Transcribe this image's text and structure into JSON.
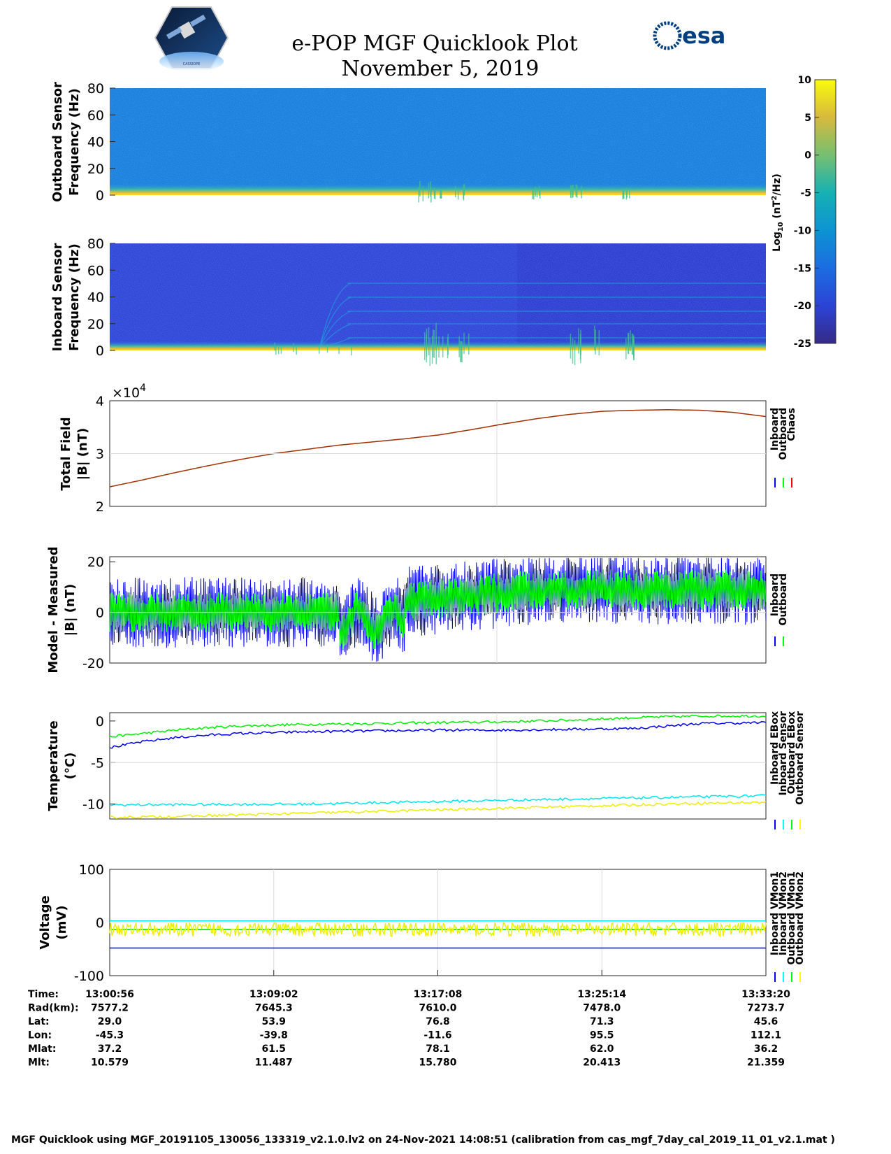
{
  "header": {
    "title": "e-POP MGF Quicklook Plot",
    "subtitle": "November 5, 2019",
    "esa_logo_text": "esa",
    "cassiope_logo_text": "CASSIOPE"
  },
  "colorbar": {
    "ticks": [
      "10",
      "5",
      "0",
      "-5",
      "-10",
      "-15",
      "-20",
      "-25"
    ],
    "label": "Log10 (nT²/Hz)",
    "range": [
      -25,
      10
    ]
  },
  "chart_data": [
    {
      "type": "heatmap",
      "name": "outboard-spectrogram",
      "ylabel": [
        "Outboard Sensor",
        "Frequency (Hz)"
      ],
      "yticks": [
        "80",
        "60",
        "40",
        "20",
        "0"
      ],
      "ylim": [
        0,
        80
      ],
      "background_level": -12,
      "low_freq_level": 5
    },
    {
      "type": "heatmap",
      "name": "inboard-spectrogram",
      "ylabel": [
        "Inboard Sensor",
        "Frequency (Hz)"
      ],
      "yticks": [
        "80",
        "60",
        "40",
        "20",
        "0"
      ],
      "ylim": [
        0,
        80
      ],
      "background_level": -20,
      "low_freq_level": 5
    },
    {
      "type": "line",
      "name": "total-field",
      "ylabel": [
        "Total Field",
        "|B| (nT)"
      ],
      "yticks": [
        "4",
        "3",
        "2"
      ],
      "yscale_label": "×10",
      "yscale_exp": "4",
      "ylim": [
        2,
        4
      ],
      "legend": [
        "Inboard",
        "Outboard",
        "Chaos"
      ],
      "legend_colors": [
        "#0000ff",
        "#00ff00",
        "#ff0000"
      ],
      "series": [
        {
          "name": "Chaos",
          "color": "#a03000",
          "x": [
            0,
            0.05,
            0.1,
            0.15,
            0.2,
            0.25,
            0.3,
            0.35,
            0.4,
            0.45,
            0.5,
            0.55,
            0.6,
            0.65,
            0.7,
            0.75,
            0.8,
            0.85,
            0.9,
            0.95,
            1.0
          ],
          "values": [
            2.37,
            2.5,
            2.64,
            2.77,
            2.89,
            3.0,
            3.08,
            3.16,
            3.22,
            3.28,
            3.35,
            3.45,
            3.56,
            3.66,
            3.74,
            3.8,
            3.82,
            3.83,
            3.82,
            3.78,
            3.7
          ]
        }
      ]
    },
    {
      "type": "line",
      "name": "model-minus-measured",
      "ylabel": [
        "Model - Measured",
        "|B| (nT)"
      ],
      "yticks": [
        "20",
        "0",
        "-20"
      ],
      "ylim": [
        -20,
        22
      ],
      "legend": [
        "Inboard",
        "Outboard"
      ],
      "legend_colors": [
        "#0000ff",
        "#00ff00"
      ]
    },
    {
      "type": "line",
      "name": "temperature",
      "ylabel": [
        "Temperature",
        "(°C)"
      ],
      "yticks": [
        "0",
        "-5",
        "-10"
      ],
      "ylim": [
        -11.8,
        1.0
      ],
      "legend": [
        "Inboard EBox",
        "Inboard Sensor",
        "Outboard EBox",
        "Outboard Sensor"
      ],
      "legend_colors": [
        "#0000ff",
        "#00ffff",
        "#00ff00",
        "#ffff00"
      ],
      "series": [
        {
          "name": "Outboard EBox",
          "color": "#00ee00",
          "x": [
            0,
            0.05,
            0.1,
            0.15,
            0.2,
            0.3,
            0.4,
            0.5,
            0.6,
            0.7,
            0.8,
            0.9,
            1.0
          ],
          "values": [
            -1.9,
            -1.5,
            -1.1,
            -0.8,
            -0.6,
            -0.4,
            -0.3,
            -0.2,
            -0.1,
            0.1,
            0.4,
            0.6,
            0.6
          ]
        },
        {
          "name": "Inboard EBox",
          "color": "#0000ee",
          "x": [
            0,
            0.05,
            0.1,
            0.15,
            0.2,
            0.3,
            0.4,
            0.5,
            0.6,
            0.7,
            0.8,
            0.85,
            0.9,
            1.0
          ],
          "values": [
            -3.2,
            -2.5,
            -2.0,
            -1.7,
            -1.5,
            -1.3,
            -1.2,
            -1.1,
            -1.1,
            -1.0,
            -0.9,
            -0.6,
            -0.3,
            -0.2
          ]
        },
        {
          "name": "Inboard Sensor",
          "color": "#00e5ee",
          "x": [
            0,
            0.3,
            0.5,
            0.7,
            1.0
          ],
          "values": [
            -10.1,
            -10.0,
            -9.7,
            -9.4,
            -9.0
          ]
        },
        {
          "name": "Outboard Sensor",
          "color": "#eeee00",
          "x": [
            0,
            0.1,
            0.2,
            0.3,
            0.4,
            0.5,
            0.6,
            0.7,
            0.8,
            0.9,
            1.0
          ],
          "values": [
            -11.6,
            -11.5,
            -11.3,
            -11.1,
            -10.9,
            -10.7,
            -10.5,
            -10.3,
            -10.1,
            -9.9,
            -9.8
          ]
        }
      ]
    },
    {
      "type": "line",
      "name": "voltage",
      "ylabel": [
        "Voltage",
        "(mV)"
      ],
      "yticks": [
        "100",
        "0",
        "-100"
      ],
      "ylim": [
        -100,
        100
      ],
      "legend": [
        "Inboard VMon1",
        "Inboard VMon2",
        "Outboard VMon1",
        "Outboard VMon2"
      ],
      "legend_colors": [
        "#0000ff",
        "#00ffff",
        "#00ff00",
        "#ffff00"
      ],
      "series": [
        {
          "name": "Inboard VMon2",
          "color": "#00e5ee",
          "x": [
            0,
            1
          ],
          "values": [
            3,
            3
          ]
        },
        {
          "name": "Inboard VMon1",
          "color": "#0000ee",
          "x": [
            0,
            1
          ],
          "values": [
            -48,
            -48
          ]
        },
        {
          "name": "Outboard VMon1",
          "color": "#00cc00",
          "x": [
            0,
            1
          ],
          "values": [
            -13,
            -13
          ]
        }
      ]
    }
  ],
  "time_axis": {
    "rows": [
      {
        "label": "Time:",
        "values": [
          "13:00:56",
          "13:09:02",
          "13:17:08",
          "13:25:14",
          "13:33:20"
        ]
      },
      {
        "label": "Rad(km):",
        "values": [
          "7577.2",
          "7645.3",
          "7610.0",
          "7478.0",
          "7273.7"
        ]
      },
      {
        "label": "Lat:",
        "values": [
          "29.0",
          "53.9",
          "76.8",
          "71.3",
          "45.6"
        ]
      },
      {
        "label": "Lon:",
        "values": [
          "-45.3",
          "-39.8",
          "-11.6",
          "95.5",
          "112.1"
        ]
      },
      {
        "label": "Mlat:",
        "values": [
          "37.2",
          "61.5",
          "78.1",
          "62.0",
          "36.2"
        ]
      },
      {
        "label": "Mlt:",
        "values": [
          "10.579",
          "11.487",
          "15.780",
          "20.413",
          "21.359"
        ]
      }
    ]
  },
  "footer": {
    "text": "MGF Quicklook using MGF_20191105_130056_133319_v2.1.0.lv2 on 24-Nov-2021 14:08:51 (calibration from cas_mgf_7day_cal_2019_11_01_v2.1.mat )"
  }
}
